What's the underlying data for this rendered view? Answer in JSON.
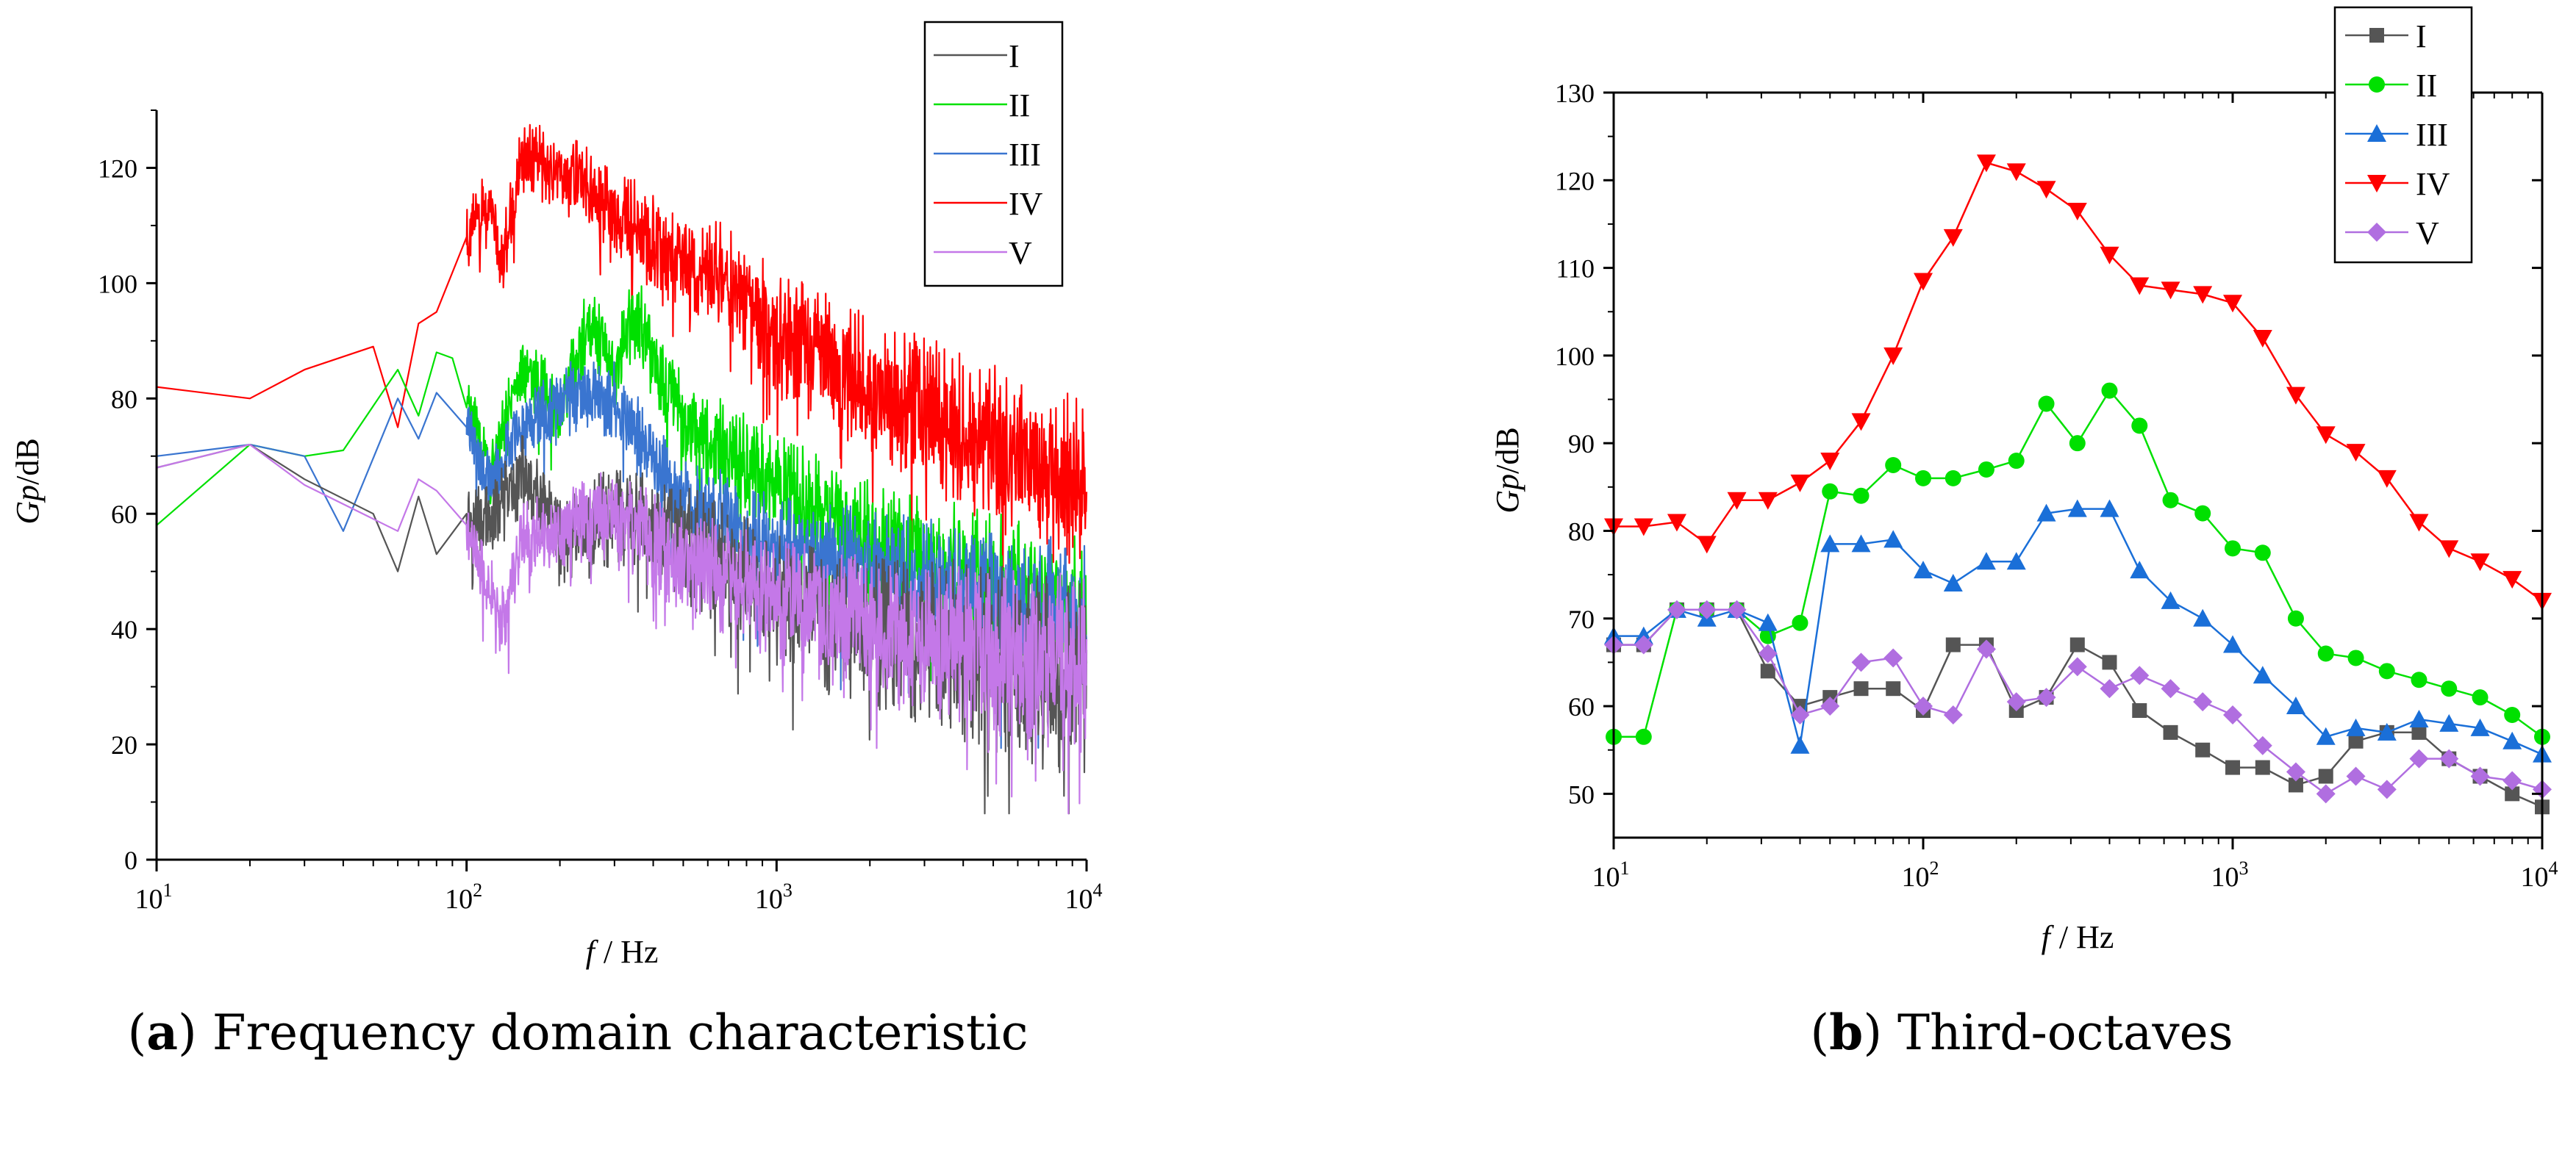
{
  "chart_data": [
    {
      "panel": "a",
      "type": "line",
      "caption_letter": "a",
      "caption_text": "Frequency domain characteristic",
      "xlabel_var": "f",
      "xlabel_unit": "/ Hz",
      "ylabel_var": "Gp",
      "ylabel_unit": "/dB",
      "x_scale": "log",
      "xlim": [
        10,
        10000
      ],
      "ylim": [
        0,
        130
      ],
      "x_ticks": [
        {
          "base": "10",
          "exp": "1",
          "value": 10
        },
        {
          "base": "10",
          "exp": "2",
          "value": 100
        },
        {
          "base": "10",
          "exp": "3",
          "value": 1000
        },
        {
          "base": "10",
          "exp": "4",
          "value": 10000
        }
      ],
      "y_ticks": [
        "0",
        "20",
        "40",
        "60",
        "80",
        "100",
        "120"
      ],
      "legend_position": "top-right",
      "noise_note": "Narrowband spectrum: values above 100 Hz are the series trend; the dense fluctuation band around the trend is rendered procedurally.",
      "series": [
        {
          "name": "I",
          "color": "#555555",
          "noise_amp": 18,
          "points": [
            [
              10,
              68
            ],
            [
              20,
              72
            ],
            [
              30,
              66
            ],
            [
              50,
              60
            ],
            [
              60,
              50
            ],
            [
              70,
              63
            ],
            [
              80,
              53
            ],
            [
              100,
              60
            ],
            [
              120,
              58
            ],
            [
              150,
              67
            ],
            [
              200,
              55
            ],
            [
              300,
              60
            ],
            [
              500,
              55
            ],
            [
              1000,
              45
            ],
            [
              2000,
              40
            ],
            [
              5000,
              35
            ],
            [
              10000,
              30
            ]
          ]
        },
        {
          "name": "II",
          "color": "#00e000",
          "noise_amp": 14,
          "points": [
            [
              10,
              58
            ],
            [
              20,
              72
            ],
            [
              30,
              70
            ],
            [
              40,
              71
            ],
            [
              60,
              85
            ],
            [
              70,
              77
            ],
            [
              80,
              88
            ],
            [
              90,
              87
            ],
            [
              120,
              67
            ],
            [
              150,
              86
            ],
            [
              200,
              78
            ],
            [
              250,
              94
            ],
            [
              300,
              84
            ],
            [
              350,
              95
            ],
            [
              500,
              76
            ],
            [
              1000,
              65
            ],
            [
              2000,
              55
            ],
            [
              5000,
              48
            ],
            [
              10000,
              42
            ]
          ]
        },
        {
          "name": "III",
          "color": "#3a75d0",
          "noise_amp": 14,
          "points": [
            [
              10,
              70
            ],
            [
              20,
              72
            ],
            [
              30,
              70
            ],
            [
              40,
              57
            ],
            [
              60,
              80
            ],
            [
              70,
              73
            ],
            [
              80,
              81
            ],
            [
              100,
              75
            ],
            [
              120,
              65
            ],
            [
              150,
              76
            ],
            [
              200,
              80
            ],
            [
              300,
              80
            ],
            [
              500,
              62
            ],
            [
              1000,
              55
            ],
            [
              2000,
              50
            ],
            [
              5000,
              45
            ],
            [
              10000,
              42
            ]
          ]
        },
        {
          "name": "IV",
          "color": "#ff0000",
          "noise_amp": 16,
          "points": [
            [
              10,
              82
            ],
            [
              20,
              80
            ],
            [
              30,
              85
            ],
            [
              50,
              89
            ],
            [
              60,
              75
            ],
            [
              70,
              93
            ],
            [
              80,
              95
            ],
            [
              100,
              108
            ],
            [
              120,
              115
            ],
            [
              130,
              103
            ],
            [
              150,
              122
            ],
            [
              200,
              120
            ],
            [
              300,
              112
            ],
            [
              500,
              104
            ],
            [
              700,
              100
            ],
            [
              1000,
              92
            ],
            [
              2000,
              82
            ],
            [
              5000,
              72
            ],
            [
              10000,
              64
            ]
          ]
        },
        {
          "name": "V",
          "color": "#c478e8",
          "noise_amp": 16,
          "points": [
            [
              10,
              68
            ],
            [
              20,
              72
            ],
            [
              30,
              65
            ],
            [
              60,
              57
            ],
            [
              70,
              66
            ],
            [
              80,
              64
            ],
            [
              100,
              58
            ],
            [
              130,
              41
            ],
            [
              150,
              55
            ],
            [
              200,
              58
            ],
            [
              300,
              60
            ],
            [
              500,
              52
            ],
            [
              1000,
              45
            ],
            [
              2000,
              40
            ],
            [
              5000,
              36
            ],
            [
              10000,
              34
            ]
          ]
        }
      ]
    },
    {
      "panel": "b",
      "type": "line",
      "caption_letter": "b",
      "caption_text": "Third-octaves",
      "xlabel_var": "f",
      "xlabel_unit": "/ Hz",
      "ylabel_var": "Gp",
      "ylabel_unit": "/dB",
      "x_scale": "log",
      "xlim": [
        10,
        10000
      ],
      "ylim": [
        45,
        130
      ],
      "x_ticks": [
        {
          "base": "10",
          "exp": "1",
          "value": 10
        },
        {
          "base": "10",
          "exp": "2",
          "value": 100
        },
        {
          "base": "10",
          "exp": "3",
          "value": 1000
        },
        {
          "base": "10",
          "exp": "4",
          "value": 10000
        }
      ],
      "y_ticks": [
        "50",
        "60",
        "70",
        "80",
        "90",
        "100",
        "110",
        "120",
        "130"
      ],
      "legend_position": "top-right",
      "x": [
        10,
        12.5,
        16,
        20,
        25,
        31.5,
        40,
        50,
        63,
        80,
        100,
        125,
        160,
        200,
        250,
        315,
        400,
        500,
        630,
        800,
        1000,
        1250,
        1600,
        2000,
        2500,
        3150,
        4000,
        5000,
        6300,
        8000,
        10000
      ],
      "series": [
        {
          "name": "I",
          "color": "#555555",
          "marker": "square",
          "values": [
            67,
            67,
            71,
            71,
            71,
            64,
            60,
            61,
            62,
            62,
            59.5,
            67,
            67,
            59.5,
            61,
            67,
            65,
            59.5,
            57,
            55,
            53,
            53,
            51,
            52,
            56,
            57,
            57,
            54,
            52,
            50,
            48.5
          ]
        },
        {
          "name": "II",
          "color": "#00e000",
          "marker": "circle",
          "values": [
            56.5,
            56.5,
            71,
            71,
            71,
            68,
            69.5,
            84.5,
            84,
            87.5,
            86,
            86,
            87,
            88,
            94.5,
            90,
            96,
            92,
            83.5,
            82,
            78,
            77.5,
            70,
            66,
            65.5,
            64,
            63,
            62,
            61,
            59,
            56.5
          ]
        },
        {
          "name": "III",
          "color": "#1a6fd8",
          "marker": "triangle-up",
          "values": [
            68,
            68,
            71,
            70,
            71,
            69.5,
            55.5,
            78.5,
            78.5,
            79,
            75.5,
            74,
            76.5,
            76.5,
            82,
            82.5,
            82.5,
            75.5,
            72,
            70,
            67,
            63.5,
            60,
            56.5,
            57.5,
            57,
            58.5,
            58,
            57.5,
            56,
            54.5
          ]
        },
        {
          "name": "IV",
          "color": "#ff0000",
          "marker": "triangle-down",
          "values": [
            80.5,
            80.5,
            81,
            78.5,
            83.5,
            83.5,
            85.5,
            88,
            92.5,
            100,
            108.5,
            113.5,
            122,
            121,
            119,
            116.5,
            111.5,
            108,
            107.5,
            107,
            106,
            102,
            95.5,
            91,
            89,
            86,
            81,
            78,
            76.5,
            74.5,
            72
          ]
        },
        {
          "name": "V",
          "color": "#b06ee0",
          "marker": "diamond",
          "values": [
            67,
            67,
            71,
            71,
            71,
            66,
            59,
            60,
            65,
            65.5,
            60,
            59,
            66.5,
            60.5,
            61,
            64.5,
            62,
            63.5,
            62,
            60.5,
            59,
            55.5,
            52.5,
            50,
            52,
            50.5,
            54,
            54,
            52,
            51.5,
            50.5
          ]
        }
      ]
    }
  ]
}
